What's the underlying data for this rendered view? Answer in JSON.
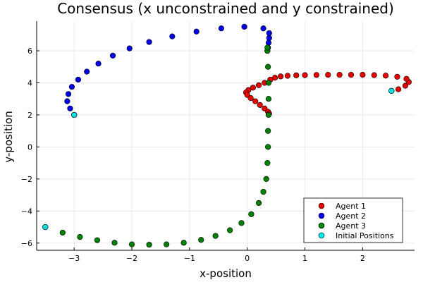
{
  "chart_data": {
    "type": "scatter",
    "title": "Consensus (x unconstrained and y constrained)",
    "xlabel": "x-position",
    "ylabel": "y-position",
    "xlim": [
      -3.65,
      2.9
    ],
    "ylim": [
      -6.45,
      7.85
    ],
    "xticks": [
      -3,
      -2,
      -1,
      0,
      1,
      2
    ],
    "yticks": [
      -6,
      -4,
      -2,
      0,
      2,
      4,
      6
    ],
    "xtick_labels": [
      "−3",
      "−2",
      "−1",
      "0",
      "1",
      "2"
    ],
    "ytick_labels": [
      "−6",
      "−4",
      "−2",
      "0",
      "2",
      "4",
      "6"
    ],
    "grid": true,
    "legend_position": "bottom-right",
    "series": [
      {
        "name": "Agent 1",
        "color": "#e60000",
        "points": [
          [
            2.5,
            3.5
          ],
          [
            2.62,
            3.6
          ],
          [
            2.74,
            3.82
          ],
          [
            2.8,
            4.05
          ],
          [
            2.76,
            4.25
          ],
          [
            2.6,
            4.38
          ],
          [
            2.4,
            4.45
          ],
          [
            2.2,
            4.48
          ],
          [
            2.0,
            4.5
          ],
          [
            1.8,
            4.5
          ],
          [
            1.6,
            4.5
          ],
          [
            1.4,
            4.5
          ],
          [
            1.2,
            4.49
          ],
          [
            1.0,
            4.48
          ],
          [
            0.85,
            4.47
          ],
          [
            0.7,
            4.44
          ],
          [
            0.58,
            4.4
          ],
          [
            0.48,
            4.32
          ],
          [
            0.4,
            4.2
          ],
          [
            0.3,
            4.0
          ],
          [
            0.2,
            3.85
          ],
          [
            0.1,
            3.7
          ],
          [
            0.02,
            3.55
          ],
          [
            -0.02,
            3.4
          ],
          [
            0.0,
            3.25
          ],
          [
            0.06,
            3.05
          ],
          [
            0.14,
            2.85
          ],
          [
            0.22,
            2.62
          ],
          [
            0.3,
            2.4
          ],
          [
            0.36,
            2.2
          ],
          [
            0.38,
            2.08
          ]
        ]
      },
      {
        "name": "Agent 2",
        "color": "#0000e6",
        "points": [
          [
            -3.0,
            2.0
          ],
          [
            -3.07,
            2.4
          ],
          [
            -3.12,
            2.85
          ],
          [
            -3.1,
            3.3
          ],
          [
            -3.04,
            3.75
          ],
          [
            -2.93,
            4.2
          ],
          [
            -2.78,
            4.7
          ],
          [
            -2.58,
            5.2
          ],
          [
            -2.33,
            5.7
          ],
          [
            -2.04,
            6.15
          ],
          [
            -1.7,
            6.55
          ],
          [
            -1.3,
            6.9
          ],
          [
            -0.88,
            7.2
          ],
          [
            -0.45,
            7.4
          ],
          [
            -0.05,
            7.5
          ],
          [
            0.28,
            7.4
          ],
          [
            0.38,
            7.1
          ],
          [
            0.38,
            6.8
          ],
          [
            0.37,
            6.5
          ],
          [
            0.36,
            6.2
          ],
          [
            0.35,
            6.0
          ]
        ]
      },
      {
        "name": "Agent 3",
        "color": "#008000",
        "points": [
          [
            -3.5,
            -5.0
          ],
          [
            -3.2,
            -5.35
          ],
          [
            -2.9,
            -5.62
          ],
          [
            -2.6,
            -5.82
          ],
          [
            -2.3,
            -5.98
          ],
          [
            -2.0,
            -6.08
          ],
          [
            -1.7,
            -6.1
          ],
          [
            -1.4,
            -6.08
          ],
          [
            -1.1,
            -5.98
          ],
          [
            -0.8,
            -5.8
          ],
          [
            -0.55,
            -5.55
          ],
          [
            -0.3,
            -5.2
          ],
          [
            -0.1,
            -4.75
          ],
          [
            0.07,
            -4.2
          ],
          [
            0.2,
            -3.5
          ],
          [
            0.28,
            -2.8
          ],
          [
            0.33,
            -2.0
          ],
          [
            0.35,
            -1.0
          ],
          [
            0.36,
            0.0
          ],
          [
            0.36,
            1.0
          ],
          [
            0.37,
            2.0
          ],
          [
            0.37,
            3.0
          ],
          [
            0.37,
            4.0
          ],
          [
            0.36,
            5.0
          ],
          [
            0.35,
            6.0
          ],
          [
            0.35,
            6.2
          ]
        ]
      },
      {
        "name": "Initial Positions",
        "color": "#00e5e5",
        "points": [
          [
            -3.0,
            2.0
          ],
          [
            2.5,
            3.5
          ],
          [
            -3.5,
            -5.0
          ]
        ]
      }
    ]
  }
}
